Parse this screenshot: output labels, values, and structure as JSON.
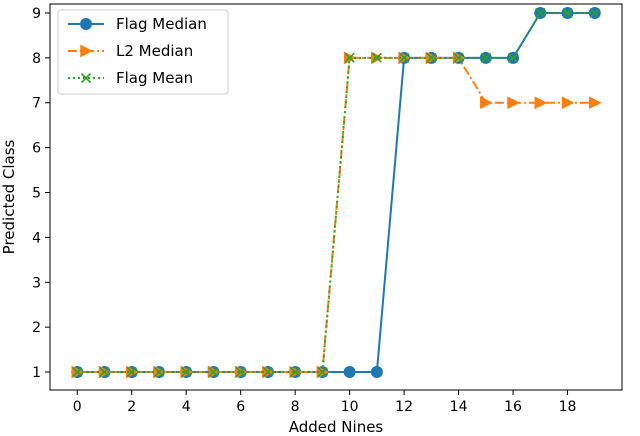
{
  "chart_data": {
    "type": "line",
    "xlabel": "Added Nines",
    "ylabel": "Predicted Class",
    "xlim": [
      -1,
      20
    ],
    "ylim": [
      0.6,
      9.2
    ],
    "xticks": [
      0,
      2,
      4,
      6,
      8,
      10,
      12,
      14,
      16,
      18
    ],
    "yticks": [
      1,
      2,
      3,
      4,
      5,
      6,
      7,
      8,
      9
    ],
    "grid": false,
    "legend_position": "top-left",
    "x": [
      0,
      1,
      2,
      3,
      4,
      5,
      6,
      7,
      8,
      9,
      10,
      11,
      12,
      13,
      14,
      15,
      16,
      17,
      18,
      19
    ],
    "series": [
      {
        "name": "Flag Median",
        "color": "#1f77b4",
        "line_style": "solid",
        "marker": "circle",
        "values": [
          1,
          1,
          1,
          1,
          1,
          1,
          1,
          1,
          1,
          1,
          1,
          1,
          8,
          8,
          8,
          8,
          8,
          9,
          9,
          9
        ]
      },
      {
        "name": "L2 Median",
        "color": "#ff7f0e",
        "line_style": "dashdot",
        "marker": "triangle-right",
        "values": [
          1,
          1,
          1,
          1,
          1,
          1,
          1,
          1,
          1,
          1,
          8,
          8,
          8,
          8,
          8,
          7,
          7,
          7,
          7,
          7
        ]
      },
      {
        "name": "Flag Mean",
        "color": "#2ca02c",
        "line_style": "dotted",
        "marker": "x",
        "values": [
          1,
          1,
          1,
          1,
          1,
          1,
          1,
          1,
          1,
          1,
          8,
          8,
          8,
          8,
          8,
          8,
          8,
          9,
          9,
          9
        ]
      }
    ]
  }
}
